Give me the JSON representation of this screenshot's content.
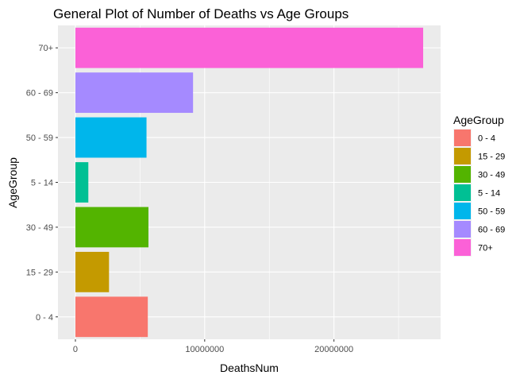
{
  "chart_data": {
    "type": "bar",
    "orientation": "horizontal",
    "title": "General Plot of Number of Deaths vs Age Groups",
    "xlabel": "DeathsNum",
    "ylabel": "AgeGroup",
    "categories": [
      "0 - 4",
      "15 - 29",
      "30 - 49",
      "5 - 14",
      "50 - 59",
      "60 - 69",
      "70+"
    ],
    "values": [
      5600000,
      2600000,
      5650000,
      1000000,
      5500000,
      9100000,
      26900000
    ],
    "colors": [
      "#F8766D",
      "#C49A00",
      "#53B400",
      "#00C094",
      "#00B6EB",
      "#A58AFF",
      "#FB61D7"
    ],
    "xlim": [
      -1350000,
      28250000
    ],
    "xticks": [
      0,
      10000000,
      20000000
    ],
    "xtick_labels": [
      "0",
      "10000000",
      "20000000"
    ],
    "grid": true,
    "panel_background": "#EBEBEB",
    "legend": {
      "title": "AgeGroup",
      "position": "right",
      "entries": [
        "0 - 4",
        "15 - 29",
        "30 - 49",
        "5 - 14",
        "50 - 59",
        "60 - 69",
        "70+"
      ]
    }
  }
}
